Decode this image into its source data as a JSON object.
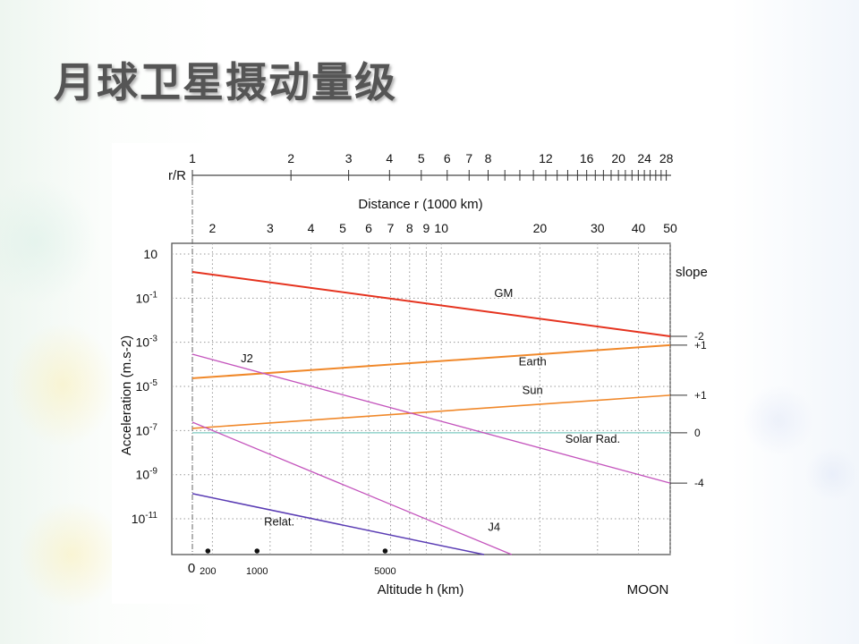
{
  "slide": {
    "title": "月球卫星摄动量级"
  },
  "chart_data": {
    "type": "line",
    "title": "",
    "xlabel_top": "r/R",
    "xlabel_mid": "Distance r (1000 km)",
    "xlabel": "Altitude h (km)",
    "xlabel_right": "MOON",
    "ylabel": "Acceleration (m.s-2)",
    "x_scale": "log",
    "y_scale": "log",
    "moon_radius_1000km": 1.737,
    "xlim_r_1000km": [
      1.737,
      50
    ],
    "ylim_log10": [
      2.1,
      -12.62
    ],
    "rR_ticks": [
      1,
      2,
      3,
      4,
      5,
      6,
      7,
      8,
      9,
      10,
      11,
      12,
      13,
      14,
      15,
      16,
      17,
      18,
      19,
      20,
      21,
      22,
      23,
      24,
      25,
      26,
      27,
      28
    ],
    "rR_tick_labels": [
      "1",
      "2",
      "3",
      "4",
      "5",
      "6",
      "7",
      "8",
      "12",
      "16",
      "20",
      "24",
      "28"
    ],
    "r_ticks": [
      2,
      3,
      4,
      5,
      6,
      7,
      8,
      9,
      10,
      20,
      30,
      40,
      50
    ],
    "r_tick_labels": [
      "2",
      "3",
      "4",
      "5",
      "6",
      "7",
      "8",
      "9",
      "10",
      "20",
      "30",
      "40",
      "50"
    ],
    "y_ticks_log10": [
      1,
      -1,
      -3,
      -5,
      -7,
      -9,
      -11
    ],
    "y_tick_labels": [
      {
        "base": "10",
        "exp": ""
      },
      {
        "base": "10",
        "exp": "-1"
      },
      {
        "base": "10",
        "exp": "-3"
      },
      {
        "base": "10",
        "exp": "-5"
      },
      {
        "base": "10",
        "exp": "-7"
      },
      {
        "base": "10",
        "exp": "-9"
      },
      {
        "base": "10",
        "exp": "-11"
      }
    ],
    "altitude_labels": [
      {
        "h": 0,
        "label": "0"
      },
      {
        "h": 200,
        "label": "200"
      },
      {
        "h": 1000,
        "label": "1000"
      },
      {
        "h": 5000,
        "label": "5000"
      }
    ],
    "altitude_markers_km": [
      200,
      1000,
      5000
    ],
    "slope_header": "slope",
    "grid": true,
    "series": [
      {
        "name": "GM",
        "color": "#e5331f",
        "width": 2,
        "r": [
          1.737,
          50
        ],
        "log10_a": [
          0.19,
          -2.73
        ],
        "label_r": 15.5,
        "label_log10": -0.95,
        "slope": "-2"
      },
      {
        "name": "Earth",
        "color": "#f0882a",
        "width": 2,
        "r": [
          1.737,
          50
        ],
        "log10_a": [
          -4.63,
          -3.13
        ],
        "label_r": 19,
        "label_log10": -4.05,
        "slope": "+1"
      },
      {
        "name": "Sun",
        "color": "#f0882a",
        "width": 1.6,
        "r": [
          1.737,
          50
        ],
        "log10_a": [
          -6.9,
          -5.4
        ],
        "label_r": 19,
        "label_log10": -5.35,
        "slope": "+1"
      },
      {
        "name": "Solar Rad.",
        "color": "#9ad6cf",
        "width": 1.6,
        "r": [
          1.737,
          50
        ],
        "log10_a": [
          -7.1,
          -7.1
        ],
        "label_r": 29,
        "label_log10": -7.55,
        "slope": "0"
      },
      {
        "name": "J2",
        "color": "#c455bd",
        "width": 1.3,
        "r": [
          1.737,
          50
        ],
        "log10_a": [
          -3.54,
          -9.38
        ],
        "label_r": 2.55,
        "label_log10": -3.9,
        "slope": "-4"
      },
      {
        "name": "J4",
        "color": "#c455bd",
        "width": 1.3,
        "r": [
          1.737,
          16.4
        ],
        "log10_a": [
          -6.62,
          -12.62
        ],
        "label_r": 14.5,
        "label_log10": -11.55,
        "slope": ""
      },
      {
        "name": "Relat.",
        "color": "#5a3cb4",
        "width": 1.5,
        "r": [
          1.737,
          13.5
        ],
        "log10_a": [
          -9.86,
          -12.62
        ],
        "label_r": 3.2,
        "label_log10": -11.3,
        "slope": ""
      }
    ]
  }
}
